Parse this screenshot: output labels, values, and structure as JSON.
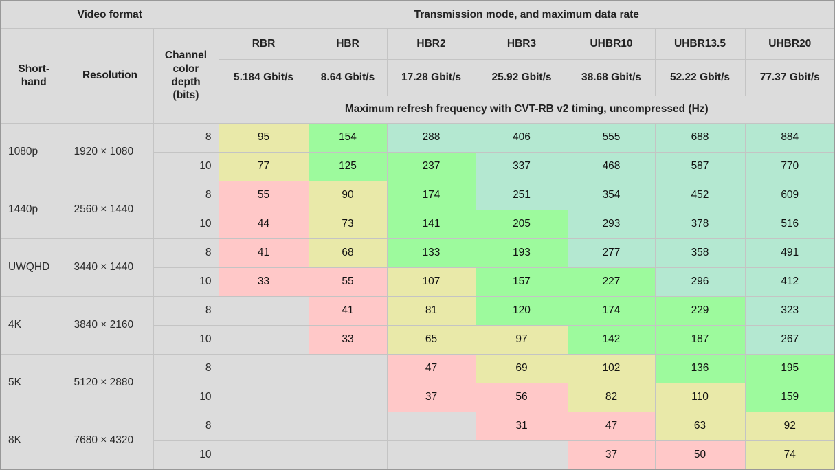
{
  "table": {
    "header": {
      "video_format": "Video format",
      "transmission": "Transmission mode, and maximum data rate",
      "shorthand": "Short-hand",
      "resolution": "Resolution",
      "channel_depth": "Channel color depth (bits)",
      "modes": [
        "RBR",
        "HBR",
        "HBR2",
        "HBR3",
        "UHBR10",
        "UHBR13.5",
        "UHBR20"
      ],
      "rates": [
        "5.184 Gbit/s",
        "8.64 Gbit/s",
        "17.28 Gbit/s",
        "25.92 Gbit/s",
        "38.68 Gbit/s",
        "52.22 Gbit/s",
        "77.37 Gbit/s"
      ],
      "refresh_note": "Maximum refresh frequency with CVT-RB v2 timing, uncompressed (Hz)"
    },
    "colors": {
      "gray": "#dcdcdc",
      "pink": "#ffc8c8",
      "yellow": "#e9e9a9",
      "green": "#9dfa9d",
      "teal": "#b4e8d1"
    },
    "rows": [
      {
        "shorthand": "1080p",
        "resolution": "1920 × 1080",
        "depths": [
          {
            "bits": "8",
            "cells": [
              {
                "v": "95",
                "c": "yellow"
              },
              {
                "v": "154",
                "c": "green"
              },
              {
                "v": "288",
                "c": "teal"
              },
              {
                "v": "406",
                "c": "teal"
              },
              {
                "v": "555",
                "c": "teal"
              },
              {
                "v": "688",
                "c": "teal"
              },
              {
                "v": "884",
                "c": "teal"
              }
            ]
          },
          {
            "bits": "10",
            "cells": [
              {
                "v": "77",
                "c": "yellow"
              },
              {
                "v": "125",
                "c": "green"
              },
              {
                "v": "237",
                "c": "green"
              },
              {
                "v": "337",
                "c": "teal"
              },
              {
                "v": "468",
                "c": "teal"
              },
              {
                "v": "587",
                "c": "teal"
              },
              {
                "v": "770",
                "c": "teal"
              }
            ]
          }
        ]
      },
      {
        "shorthand": "1440p",
        "resolution": "2560 × 1440",
        "depths": [
          {
            "bits": "8",
            "cells": [
              {
                "v": "55",
                "c": "pink"
              },
              {
                "v": "90",
                "c": "yellow"
              },
              {
                "v": "174",
                "c": "green"
              },
              {
                "v": "251",
                "c": "teal"
              },
              {
                "v": "354",
                "c": "teal"
              },
              {
                "v": "452",
                "c": "teal"
              },
              {
                "v": "609",
                "c": "teal"
              }
            ]
          },
          {
            "bits": "10",
            "cells": [
              {
                "v": "44",
                "c": "pink"
              },
              {
                "v": "73",
                "c": "yellow"
              },
              {
                "v": "141",
                "c": "green"
              },
              {
                "v": "205",
                "c": "green"
              },
              {
                "v": "293",
                "c": "teal"
              },
              {
                "v": "378",
                "c": "teal"
              },
              {
                "v": "516",
                "c": "teal"
              }
            ]
          }
        ]
      },
      {
        "shorthand": "UWQHD",
        "resolution": "3440 × 1440",
        "depths": [
          {
            "bits": "8",
            "cells": [
              {
                "v": "41",
                "c": "pink"
              },
              {
                "v": "68",
                "c": "yellow"
              },
              {
                "v": "133",
                "c": "green"
              },
              {
                "v": "193",
                "c": "green"
              },
              {
                "v": "277",
                "c": "teal"
              },
              {
                "v": "358",
                "c": "teal"
              },
              {
                "v": "491",
                "c": "teal"
              }
            ]
          },
          {
            "bits": "10",
            "cells": [
              {
                "v": "33",
                "c": "pink"
              },
              {
                "v": "55",
                "c": "pink"
              },
              {
                "v": "107",
                "c": "yellow"
              },
              {
                "v": "157",
                "c": "green"
              },
              {
                "v": "227",
                "c": "green"
              },
              {
                "v": "296",
                "c": "teal"
              },
              {
                "v": "412",
                "c": "teal"
              }
            ]
          }
        ]
      },
      {
        "shorthand": "4K",
        "resolution": "3840 × 2160",
        "depths": [
          {
            "bits": "8",
            "cells": [
              {
                "v": "",
                "c": "gray"
              },
              {
                "v": "41",
                "c": "pink"
              },
              {
                "v": "81",
                "c": "yellow"
              },
              {
                "v": "120",
                "c": "green"
              },
              {
                "v": "174",
                "c": "green"
              },
              {
                "v": "229",
                "c": "green"
              },
              {
                "v": "323",
                "c": "teal"
              }
            ]
          },
          {
            "bits": "10",
            "cells": [
              {
                "v": "",
                "c": "gray"
              },
              {
                "v": "33",
                "c": "pink"
              },
              {
                "v": "65",
                "c": "yellow"
              },
              {
                "v": "97",
                "c": "yellow"
              },
              {
                "v": "142",
                "c": "green"
              },
              {
                "v": "187",
                "c": "green"
              },
              {
                "v": "267",
                "c": "teal"
              }
            ]
          }
        ]
      },
      {
        "shorthand": "5K",
        "resolution": "5120 × 2880",
        "depths": [
          {
            "bits": "8",
            "cells": [
              {
                "v": "",
                "c": "gray"
              },
              {
                "v": "",
                "c": "gray"
              },
              {
                "v": "47",
                "c": "pink"
              },
              {
                "v": "69",
                "c": "yellow"
              },
              {
                "v": "102",
                "c": "yellow"
              },
              {
                "v": "136",
                "c": "green"
              },
              {
                "v": "195",
                "c": "green"
              }
            ]
          },
          {
            "bits": "10",
            "cells": [
              {
                "v": "",
                "c": "gray"
              },
              {
                "v": "",
                "c": "gray"
              },
              {
                "v": "37",
                "c": "pink"
              },
              {
                "v": "56",
                "c": "pink"
              },
              {
                "v": "82",
                "c": "yellow"
              },
              {
                "v": "110",
                "c": "yellow"
              },
              {
                "v": "159",
                "c": "green"
              }
            ]
          }
        ]
      },
      {
        "shorthand": "8K",
        "resolution": "7680 × 4320",
        "depths": [
          {
            "bits": "8",
            "cells": [
              {
                "v": "",
                "c": "gray"
              },
              {
                "v": "",
                "c": "gray"
              },
              {
                "v": "",
                "c": "gray"
              },
              {
                "v": "31",
                "c": "pink"
              },
              {
                "v": "47",
                "c": "pink"
              },
              {
                "v": "63",
                "c": "yellow"
              },
              {
                "v": "92",
                "c": "yellow"
              }
            ]
          },
          {
            "bits": "10",
            "cells": [
              {
                "v": "",
                "c": "gray"
              },
              {
                "v": "",
                "c": "gray"
              },
              {
                "v": "",
                "c": "gray"
              },
              {
                "v": "",
                "c": "gray"
              },
              {
                "v": "37",
                "c": "pink"
              },
              {
                "v": "50",
                "c": "pink"
              },
              {
                "v": "74",
                "c": "yellow"
              }
            ]
          }
        ]
      }
    ]
  }
}
